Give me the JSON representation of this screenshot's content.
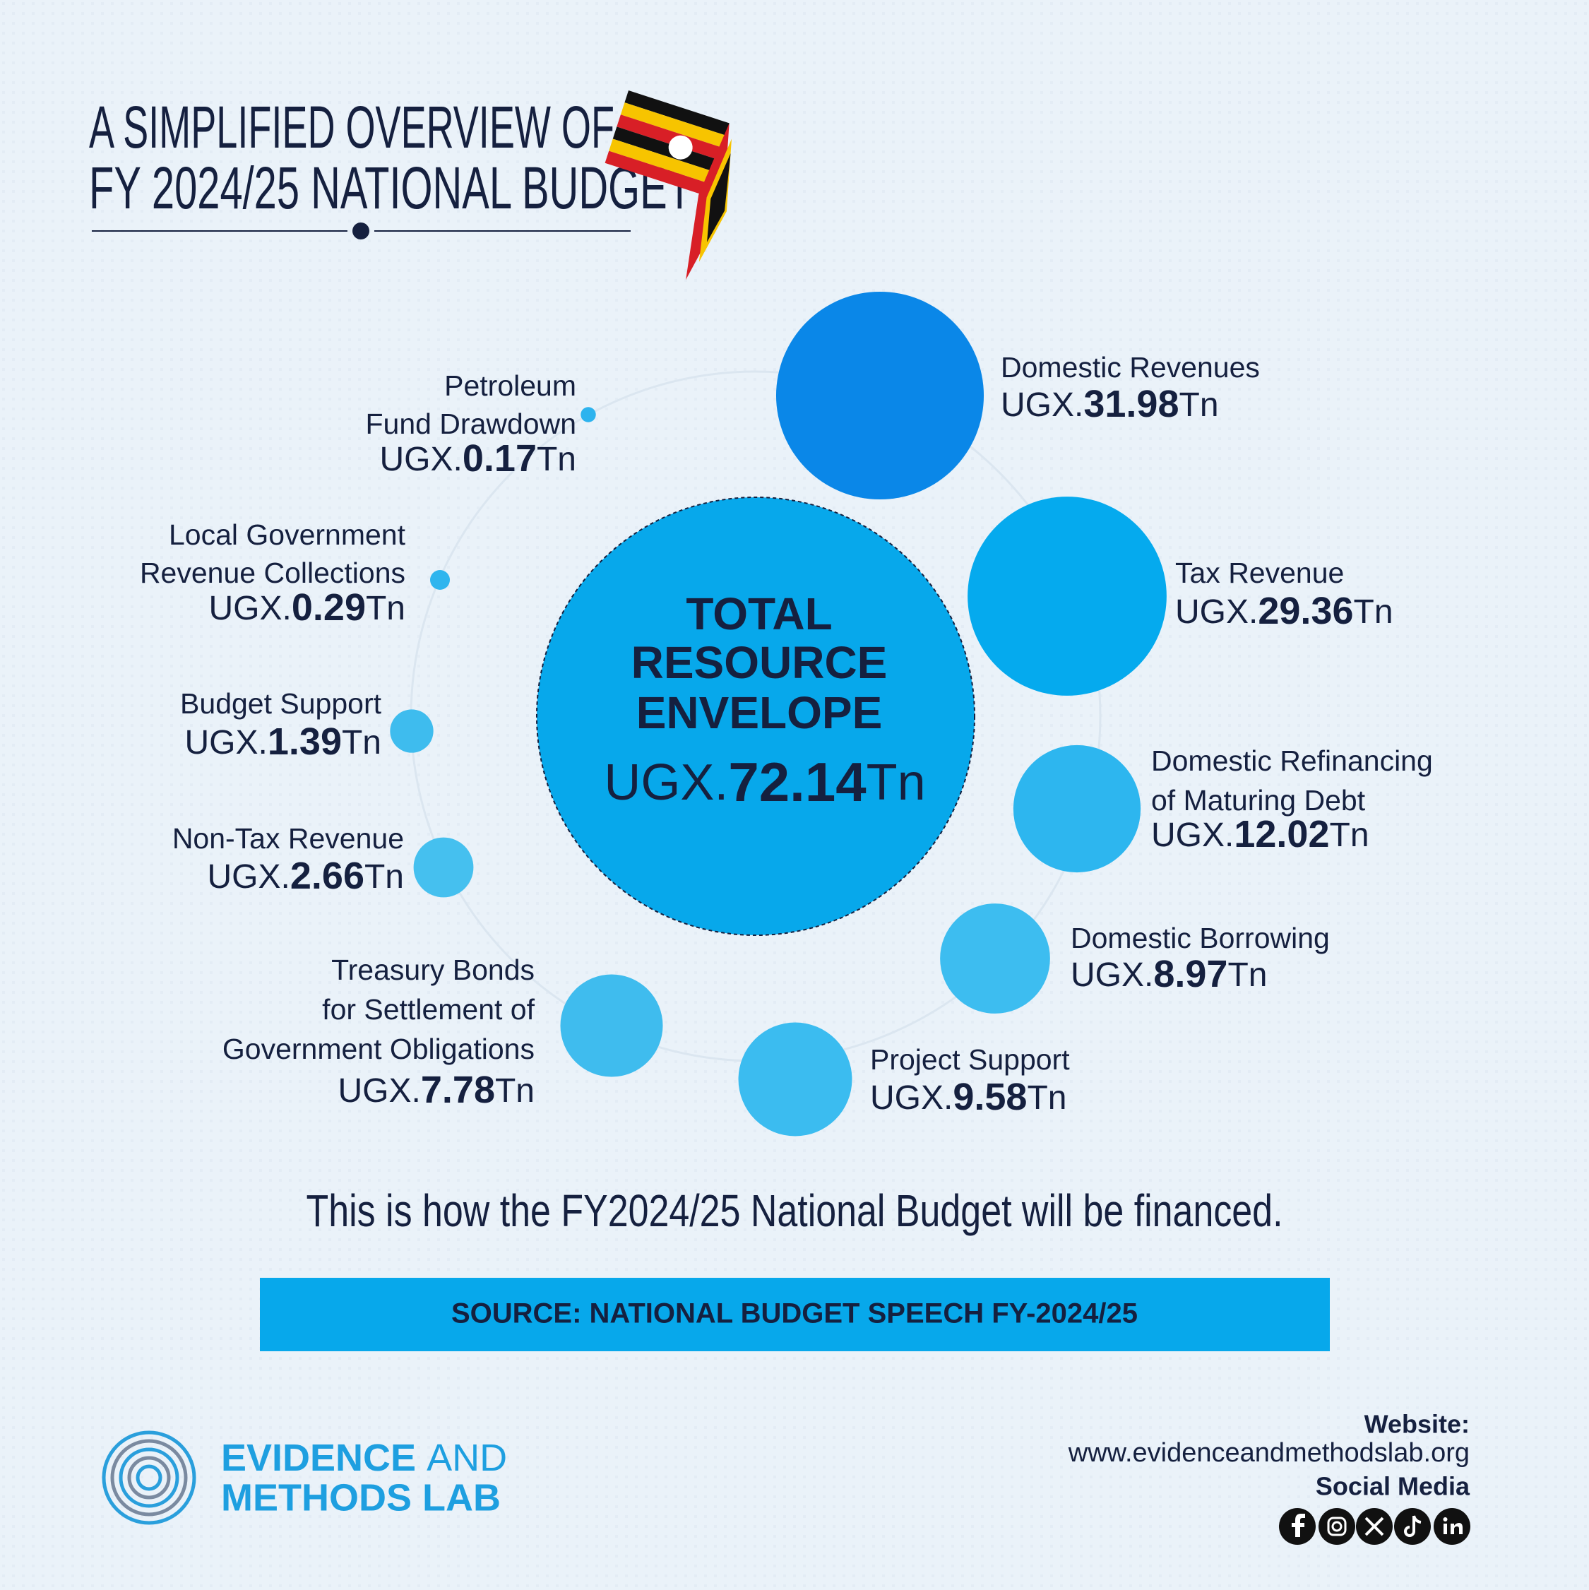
{
  "title_lines": [
    "A SIMPLIFIED OVERVIEW OF",
    "FY 2024/25 NATIONAL BUDGET"
  ],
  "chart_data": {
    "type": "bubble",
    "center": {
      "label_lines": [
        "TOTAL",
        "RESOURCE",
        "ENVELOPE"
      ],
      "value": 72.14,
      "color": "#07a8eb"
    },
    "unit_prefix": "UGX.",
    "unit_suffix": "Tn",
    "labels": [
      [
        "Domestic Revenues"
      ],
      [
        "Tax Revenue"
      ],
      [
        "Domestic Refinancing",
        "of Maturing Debt"
      ],
      [
        "Domestic Borrowing"
      ],
      [
        "Project Support"
      ],
      [
        "Treasury Bonds",
        "for Settlement of",
        "Government Obligations"
      ],
      [
        "Non-Tax Revenue"
      ],
      [
        "Budget Support"
      ],
      [
        "Local Government",
        "Revenue Collections"
      ],
      [
        "Petroleum",
        "Fund Drawdown"
      ]
    ],
    "values": [
      31.98,
      29.36,
      12.02,
      8.97,
      9.58,
      7.78,
      2.66,
      1.39,
      0.29,
      0.17
    ],
    "colors": [
      "#0a87e8",
      "#05aaee",
      "#2db6ef",
      "#3dbdf0",
      "#3bbcf0",
      "#3fbcee",
      "#45c0ef",
      "#3ebcee",
      "#2fb5ee",
      "#2db3ee"
    ]
  },
  "subtitle": "This is how the FY2024/25 National Budget will be financed.",
  "source": "SOURCE: NATIONAL BUDGET SPEECH FY-2024/25",
  "footer": {
    "brand_line1": "EVIDENCE",
    "brand_and": "AND",
    "brand_line2": "METHODS LAB",
    "website_label": "Website:",
    "website": "www.evidenceandmethodslab.org",
    "social_label": "Social Media"
  }
}
